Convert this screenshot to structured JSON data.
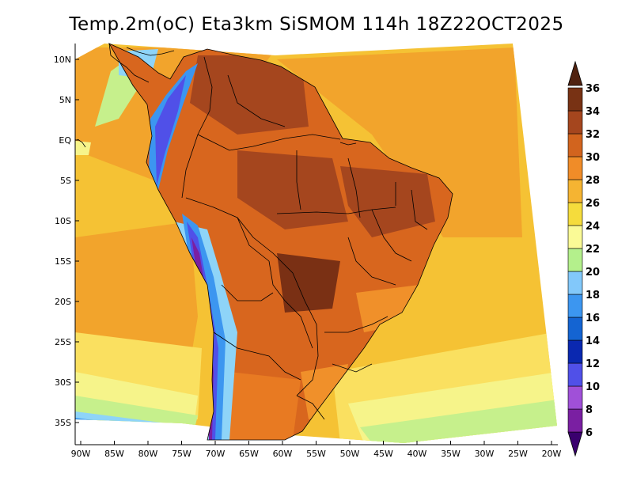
{
  "title": "Temp.2m(oC) Eta3km SiSMOM 114h 18Z22OCT2025",
  "lat_labels": [
    "10N",
    "5N",
    "EQ",
    "5S",
    "10S",
    "15S",
    "20S",
    "25S",
    "30S",
    "35S"
  ],
  "lon_labels": [
    "90W",
    "85W",
    "80W",
    "75W",
    "70W",
    "65W",
    "60W",
    "55W",
    "50W",
    "45W",
    "40W",
    "35W",
    "30W",
    "25W",
    "20W"
  ],
  "colorbar": {
    "labels": [
      "6",
      "8",
      "10",
      "12",
      "14",
      "16",
      "18",
      "20",
      "22",
      "24",
      "26",
      "28",
      "30",
      "32",
      "34",
      "36"
    ],
    "colors": [
      "#3a006e",
      "#7a1fa2",
      "#a050d8",
      "#5050e8",
      "#0a28b0",
      "#1464d2",
      "#3c96f0",
      "#82c8fa",
      "#b4f08c",
      "#fafa96",
      "#f5dc3c",
      "#f5b432",
      "#f08c28",
      "#d2641e",
      "#a5461e",
      "#783214",
      "#502210"
    ]
  }
}
